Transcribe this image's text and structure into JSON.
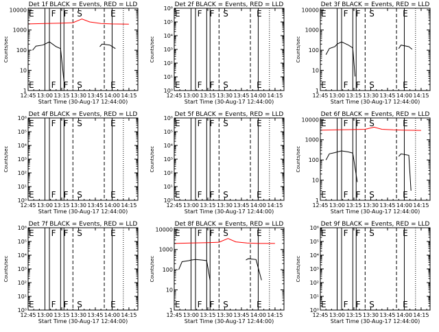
{
  "figure": {
    "xlabel": "Start Time (30-Aug-17 12:44:00)",
    "ylabel": "Counts/sec",
    "x_tick_labels": [
      "12:45",
      "13:00",
      "13:15",
      "13:30",
      "13:45",
      "14:00",
      "14:15"
    ],
    "y_tick_labels": [
      "1",
      "10",
      "100",
      "1000",
      "10000"
    ],
    "colors": {
      "events": "#000000",
      "lld": "#ff0000",
      "background": "#ffffff",
      "axes": "#000000"
    }
  },
  "chart_data": [
    {
      "type": "line",
      "title": "Det 1f BLACK = Events, RED = LLD",
      "has_data": true,
      "xlim": [
        "12:45",
        "14:23"
      ],
      "ylim": [
        1,
        12000
      ],
      "yscale": "log",
      "markers": [
        {
          "label": "E",
          "x": "12:45"
        },
        {
          "label": "F",
          "x": "13:05"
        },
        {
          "label": "F",
          "x": "13:16"
        },
        {
          "label": "S",
          "x": "13:28"
        },
        {
          "label": "E",
          "x": "13:58"
        }
      ],
      "solid_lines": [
        "13:00",
        "13:04",
        "13:14",
        "13:17",
        "14:00"
      ],
      "dashed_lines": [
        "13:25",
        "13:53"
      ],
      "dotted_lines": [
        "14:10"
      ],
      "series": [
        {
          "name": "Events",
          "segments": [
            [
              [
                "12:49",
                100
              ],
              [
                "12:52",
                160
              ],
              [
                "12:58",
                180
              ],
              [
                "13:00",
                200
              ],
              [
                "13:04",
                260
              ],
              [
                "13:10",
                150
              ],
              [
                "13:14",
                120
              ],
              [
                "13:17",
                3
              ]
            ],
            [
              [
                "13:49",
                150
              ],
              [
                "13:51",
                200
              ],
              [
                "13:58",
                180
              ],
              [
                "14:03",
                120
              ]
            ]
          ]
        },
        {
          "name": "LLD",
          "segments": [
            [
              [
                "12:45",
                2000
              ],
              [
                "13:00",
                2100
              ],
              [
                "13:15",
                2200
              ],
              [
                "13:25",
                2300
              ],
              [
                "13:33",
                3500
              ],
              [
                "13:40",
                2500
              ],
              [
                "13:50",
                2100
              ],
              [
                "14:00",
                2000
              ],
              [
                "14:15",
                1950
              ]
            ]
          ]
        }
      ]
    },
    {
      "type": "line",
      "title": "Det 2f BLACK = Events, RED = LLD",
      "has_data": false,
      "xlim": [
        "12:45",
        "14:23"
      ],
      "ylim": [
        1,
        1000000
      ],
      "yscale": "log",
      "markers": [
        {
          "label": "E",
          "x": "12:45"
        },
        {
          "label": "F",
          "x": "13:05"
        },
        {
          "label": "F",
          "x": "13:16"
        },
        {
          "label": "S",
          "x": "13:28"
        },
        {
          "label": "E",
          "x": "13:58"
        }
      ],
      "solid_lines": [
        "13:00",
        "13:04",
        "13:14",
        "13:17",
        "14:00"
      ],
      "dashed_lines": [
        "13:25",
        "13:53"
      ],
      "dotted_lines": [
        "14:10"
      ],
      "series": []
    },
    {
      "type": "line",
      "title": "Det 3f BLACK = Events, RED = LLD",
      "has_data": true,
      "xlim": [
        "12:45",
        "14:23"
      ],
      "ylim": [
        1,
        12000
      ],
      "yscale": "log",
      "markers": [
        {
          "label": "E",
          "x": "12:45"
        },
        {
          "label": "F",
          "x": "13:05"
        },
        {
          "label": "F",
          "x": "13:16"
        },
        {
          "label": "S",
          "x": "13:28"
        },
        {
          "label": "E",
          "x": "13:58"
        }
      ],
      "solid_lines": [
        "13:00",
        "13:04",
        "13:14",
        "13:17",
        "14:00"
      ],
      "dashed_lines": [
        "13:25",
        "13:53"
      ],
      "dotted_lines": [
        "14:10"
      ],
      "series": [
        {
          "name": "Events",
          "segments": [
            [
              [
                "12:50",
                60
              ],
              [
                "12:53",
                120
              ],
              [
                "12:58",
                150
              ],
              [
                "13:00",
                200
              ],
              [
                "13:04",
                260
              ],
              [
                "13:10",
                180
              ],
              [
                "13:14",
                130
              ],
              [
                "13:16",
                5
              ]
            ],
            [
              [
                "13:55",
                120
              ],
              [
                "13:57",
                180
              ],
              [
                "14:04",
                150
              ],
              [
                "14:07",
                110
              ]
            ]
          ]
        }
      ]
    },
    {
      "type": "line",
      "title": "Det 4f BLACK = Events, RED = LLD",
      "has_data": false,
      "xlim": [
        "12:45",
        "14:23"
      ],
      "ylim": [
        1,
        1000000
      ],
      "yscale": "log",
      "markers": [
        {
          "label": "E",
          "x": "12:45"
        },
        {
          "label": "F",
          "x": "13:05"
        },
        {
          "label": "F",
          "x": "13:16"
        },
        {
          "label": "S",
          "x": "13:28"
        },
        {
          "label": "E",
          "x": "13:58"
        }
      ],
      "solid_lines": [
        "13:00",
        "13:04",
        "13:14",
        "13:17",
        "14:00"
      ],
      "dashed_lines": [
        "13:25",
        "13:53"
      ],
      "dotted_lines": [
        "14:10"
      ],
      "series": []
    },
    {
      "type": "line",
      "title": "Det 5f BLACK = Events, RED = LLD",
      "has_data": false,
      "xlim": [
        "12:45",
        "14:23"
      ],
      "ylim": [
        1,
        1000000
      ],
      "yscale": "log",
      "markers": [
        {
          "label": "E",
          "x": "12:45"
        },
        {
          "label": "F",
          "x": "13:05"
        },
        {
          "label": "F",
          "x": "13:16"
        },
        {
          "label": "S",
          "x": "13:28"
        },
        {
          "label": "E",
          "x": "13:58"
        }
      ],
      "solid_lines": [
        "13:00",
        "13:04",
        "13:14",
        "13:17",
        "14:00"
      ],
      "dashed_lines": [
        "13:25",
        "13:53"
      ],
      "dotted_lines": [
        "14:10"
      ],
      "series": []
    },
    {
      "type": "line",
      "title": "Det 6f BLACK = Events, RED = LLD",
      "has_data": true,
      "xlim": [
        "12:45",
        "14:23"
      ],
      "ylim": [
        1,
        12000
      ],
      "yscale": "log",
      "markers": [
        {
          "label": "E",
          "x": "12:45"
        },
        {
          "label": "F",
          "x": "13:05"
        },
        {
          "label": "F",
          "x": "13:16"
        },
        {
          "label": "S",
          "x": "13:28"
        },
        {
          "label": "E",
          "x": "13:58"
        }
      ],
      "solid_lines": [
        "13:00",
        "13:04",
        "13:14",
        "13:17",
        "14:00"
      ],
      "dashed_lines": [
        "13:25",
        "13:53"
      ],
      "dotted_lines": [
        "14:10"
      ],
      "series": [
        {
          "name": "Events",
          "segments": [
            [
              [
                "12:50",
                100
              ],
              [
                "12:53",
                200
              ],
              [
                "12:58",
                230
              ],
              [
                "13:00",
                250
              ],
              [
                "13:04",
                280
              ],
              [
                "13:10",
                250
              ],
              [
                "13:14",
                220
              ],
              [
                "13:18",
                8
              ]
            ],
            [
              [
                "13:55",
                150
              ],
              [
                "13:57",
                200
              ],
              [
                "14:04",
                170
              ],
              [
                "14:06",
                3
              ]
            ]
          ]
        },
        {
          "name": "LLD",
          "segments": [
            [
              [
                "12:45",
                3000
              ],
              [
                "13:00",
                3100
              ],
              [
                "13:15",
                3200
              ],
              [
                "13:25",
                3300
              ],
              [
                "13:33",
                4200
              ],
              [
                "13:40",
                3300
              ],
              [
                "13:50",
                3100
              ],
              [
                "14:00",
                3000
              ],
              [
                "14:15",
                2900
              ]
            ]
          ]
        }
      ]
    },
    {
      "type": "line",
      "title": "Det 7f BLACK = Events, RED = LLD",
      "has_data": false,
      "xlim": [
        "12:45",
        "14:23"
      ],
      "ylim": [
        1,
        1000000
      ],
      "yscale": "log",
      "markers": [
        {
          "label": "E",
          "x": "12:45"
        },
        {
          "label": "F",
          "x": "13:05"
        },
        {
          "label": "F",
          "x": "13:16"
        },
        {
          "label": "S",
          "x": "13:28"
        },
        {
          "label": "E",
          "x": "13:58"
        }
      ],
      "solid_lines": [
        "13:00",
        "13:04",
        "13:14",
        "13:17",
        "14:00"
      ],
      "dashed_lines": [
        "13:25",
        "13:53"
      ],
      "dotted_lines": [
        "14:10"
      ],
      "series": []
    },
    {
      "type": "line",
      "title": "Det 8f BLACK = Events, RED = LLD",
      "has_data": true,
      "xlim": [
        "12:45",
        "14:23"
      ],
      "ylim": [
        1,
        12000
      ],
      "yscale": "log",
      "markers": [
        {
          "label": "E",
          "x": "12:45"
        },
        {
          "label": "F",
          "x": "13:05"
        },
        {
          "label": "F",
          "x": "13:16"
        },
        {
          "label": "S",
          "x": "13:28"
        },
        {
          "label": "E",
          "x": "13:58"
        }
      ],
      "solid_lines": [
        "13:00",
        "13:04",
        "13:14",
        "13:17",
        "14:00"
      ],
      "dashed_lines": [
        "13:25",
        "13:53"
      ],
      "dotted_lines": [
        "14:10"
      ],
      "series": [
        {
          "name": "Events",
          "segments": [
            [
              [
                "12:49",
                100
              ],
              [
                "12:52",
                250
              ],
              [
                "12:58",
                280
              ],
              [
                "13:00",
                300
              ],
              [
                "13:04",
                320
              ],
              [
                "13:10",
                300
              ],
              [
                "13:14",
                280
              ],
              [
                "13:17",
                30
              ]
            ],
            [
              [
                "13:49",
                300
              ],
              [
                "13:51",
                350
              ],
              [
                "13:58",
                320
              ],
              [
                "14:03",
                30
              ]
            ]
          ]
        },
        {
          "name": "LLD",
          "segments": [
            [
              [
                "12:45",
                2000
              ],
              [
                "13:00",
                2100
              ],
              [
                "13:15",
                2200
              ],
              [
                "13:25",
                2300
              ],
              [
                "13:33",
                3500
              ],
              [
                "13:40",
                2400
              ],
              [
                "13:50",
                2100
              ],
              [
                "14:00",
                2000
              ],
              [
                "14:15",
                2000
              ]
            ]
          ]
        }
      ]
    },
    {
      "type": "line",
      "title": "Det 9f BLACK = Events, RED = LLD",
      "has_data": false,
      "xlim": [
        "12:45",
        "14:23"
      ],
      "ylim": [
        1,
        1000000
      ],
      "yscale": "log",
      "markers": [
        {
          "label": "E",
          "x": "12:45"
        },
        {
          "label": "F",
          "x": "13:05"
        },
        {
          "label": "F",
          "x": "13:16"
        },
        {
          "label": "S",
          "x": "13:28"
        },
        {
          "label": "E",
          "x": "13:58"
        }
      ],
      "solid_lines": [
        "13:00",
        "13:04",
        "13:14",
        "13:17",
        "14:00"
      ],
      "dashed_lines": [
        "13:25",
        "13:53"
      ],
      "dotted_lines": [
        "14:10"
      ],
      "series": []
    }
  ]
}
